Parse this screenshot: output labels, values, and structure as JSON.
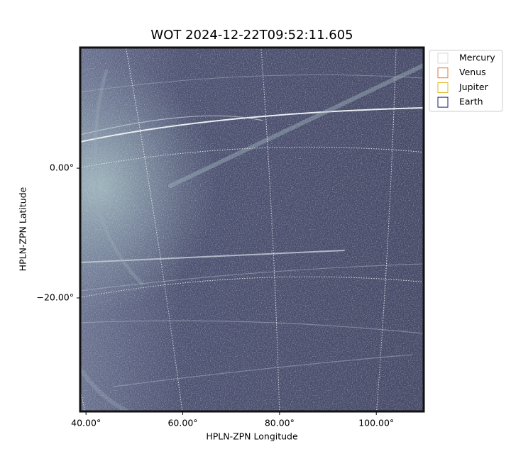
{
  "chart_data": {
    "type": "image",
    "title": "WOT 2024-12-22T09:52:11.605",
    "xlabel": "HPLN-ZPN Longitude",
    "ylabel": "HPLN-ZPN Latitude",
    "xlim": [
      38.8,
      109.8
    ],
    "ylim": [
      -37.5,
      18.6
    ],
    "xticks": [
      {
        "value": 40,
        "label": "40.00°"
      },
      {
        "value": 60,
        "label": "60.00°"
      },
      {
        "value": 80,
        "label": "80.00°"
      },
      {
        "value": 100,
        "label": "100.00°"
      }
    ],
    "yticks": [
      {
        "value": 0,
        "label": "0.00°"
      },
      {
        "value": -20,
        "label": "−20.00°"
      }
    ],
    "grid": true,
    "legend_position": "upper right outside",
    "series": [
      {
        "name": "Mercury",
        "color": "#d9d9d9"
      },
      {
        "name": "Venus",
        "color": "#e07b39"
      },
      {
        "name": "Jupiter",
        "color": "#e6b422"
      },
      {
        "name": "Earth",
        "color": "#1a1a7a"
      }
    ]
  }
}
